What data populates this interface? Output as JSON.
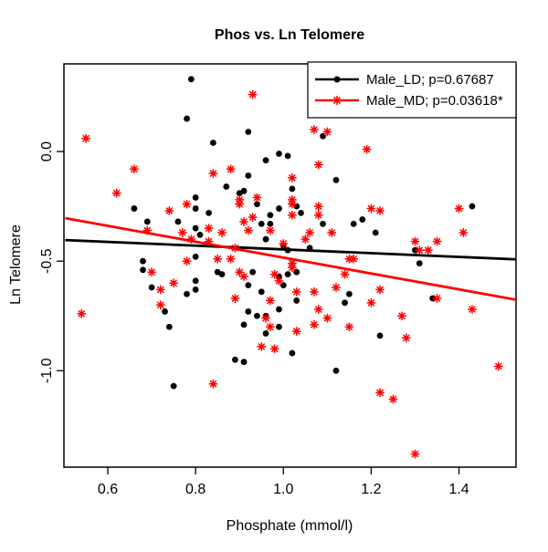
{
  "chart_data": {
    "type": "scatter",
    "title": "Phos vs. Ln Telomere",
    "xlabel": "Phosphate (mmol/l)",
    "ylabel": "Ln Telomere",
    "xlim": [
      0.5,
      1.53
    ],
    "ylim": [
      -1.44,
      0.4
    ],
    "x_ticks": [
      0.6,
      0.8,
      1.0,
      1.2,
      1.4
    ],
    "x_tick_labels": [
      "0.6",
      "0.8",
      "1.0",
      "1.2",
      "1.4"
    ],
    "y_ticks": [
      0.0,
      -0.5,
      -1.0
    ],
    "y_tick_labels": [
      "0.0",
      "-0.5",
      "-1.0"
    ],
    "grid": false,
    "legend_position": "top-right",
    "series": [
      {
        "name": "Male_LD; p=0.67687",
        "marker": "filled-circle",
        "color": "#000000",
        "points": [
          [
            0.79,
            0.33
          ],
          [
            0.78,
            0.15
          ],
          [
            0.84,
            0.04
          ],
          [
            0.8,
            -0.21
          ],
          [
            0.92,
            0.09
          ],
          [
            1.09,
            0.07
          ],
          [
            0.99,
            -0.01
          ],
          [
            1.01,
            -0.02
          ],
          [
            0.96,
            -0.04
          ],
          [
            0.92,
            -0.11
          ],
          [
            0.87,
            -0.16
          ],
          [
            0.91,
            -0.18
          ],
          [
            0.9,
            -0.19
          ],
          [
            1.02,
            -0.17
          ],
          [
            1.12,
            -0.13
          ],
          [
            0.66,
            -0.26
          ],
          [
            0.69,
            -0.32
          ],
          [
            0.76,
            -0.32
          ],
          [
            0.8,
            -0.26
          ],
          [
            0.83,
            -0.28
          ],
          [
            0.8,
            -0.35
          ],
          [
            0.81,
            -0.38
          ],
          [
            0.8,
            -0.48
          ],
          [
            0.68,
            -0.5
          ],
          [
            0.68,
            -0.54
          ],
          [
            0.7,
            -0.62
          ],
          [
            0.8,
            -0.59
          ],
          [
            0.8,
            -0.63
          ],
          [
            0.78,
            -0.65
          ],
          [
            0.73,
            -0.73
          ],
          [
            0.74,
            -0.8
          ],
          [
            0.94,
            -0.24
          ],
          [
            0.99,
            -0.26
          ],
          [
            1.03,
            -0.25
          ],
          [
            0.97,
            -0.29
          ],
          [
            0.95,
            -0.33
          ],
          [
            0.97,
            -0.33
          ],
          [
            1.04,
            -0.28
          ],
          [
            1.09,
            -0.33
          ],
          [
            1.16,
            -0.33
          ],
          [
            1.18,
            -0.31
          ],
          [
            0.96,
            -0.4
          ],
          [
            1.0,
            -0.43
          ],
          [
            1.01,
            -0.45
          ],
          [
            1.06,
            -0.44
          ],
          [
            0.85,
            -0.55
          ],
          [
            0.86,
            -0.56
          ],
          [
            0.93,
            -0.55
          ],
          [
            0.92,
            -0.61
          ],
          [
            0.99,
            -0.57
          ],
          [
            1.01,
            -0.56
          ],
          [
            1.03,
            -0.55
          ],
          [
            1.0,
            -0.61
          ],
          [
            0.95,
            -0.64
          ],
          [
            1.03,
            -0.68
          ],
          [
            1.15,
            -0.65
          ],
          [
            1.14,
            -0.69
          ],
          [
            0.92,
            -0.73
          ],
          [
            0.94,
            -0.75
          ],
          [
            0.96,
            -0.75
          ],
          [
            0.99,
            -0.72
          ],
          [
            0.91,
            -0.79
          ],
          [
            0.99,
            -0.8
          ],
          [
            0.96,
            -0.83
          ],
          [
            1.43,
            -0.25
          ],
          [
            1.21,
            -0.37
          ],
          [
            1.3,
            -0.45
          ],
          [
            1.31,
            -0.51
          ],
          [
            1.34,
            -0.67
          ],
          [
            1.22,
            -0.84
          ],
          [
            0.75,
            -1.07
          ],
          [
            1.02,
            -0.92
          ],
          [
            0.89,
            -0.95
          ],
          [
            0.91,
            -0.96
          ],
          [
            1.12,
            -1.0
          ]
        ],
        "trend": {
          "x1": 0.503,
          "y1": -0.404,
          "x2": 1.53,
          "y2": -0.492
        }
      },
      {
        "name": "Male_MD; p=0.03618*",
        "marker": "asterisk",
        "color": "#FF0000",
        "points": [
          [
            0.55,
            0.06
          ],
          [
            0.66,
            -0.08
          ],
          [
            0.84,
            -0.1
          ],
          [
            0.62,
            -0.19
          ],
          [
            0.93,
            0.26
          ],
          [
            1.07,
            0.1
          ],
          [
            1.1,
            0.09
          ],
          [
            1.08,
            -0.06
          ],
          [
            0.88,
            -0.08
          ],
          [
            1.02,
            -0.12
          ],
          [
            0.94,
            -0.21
          ],
          [
            0.9,
            -0.22
          ],
          [
            1.02,
            -0.22
          ],
          [
            1.19,
            0.01
          ],
          [
            0.74,
            -0.27
          ],
          [
            0.78,
            -0.24
          ],
          [
            0.69,
            -0.36
          ],
          [
            0.77,
            -0.37
          ],
          [
            0.79,
            -0.4
          ],
          [
            0.83,
            -0.35
          ],
          [
            0.83,
            -0.41
          ],
          [
            0.7,
            -0.55
          ],
          [
            0.78,
            -0.5
          ],
          [
            0.75,
            -0.6
          ],
          [
            0.72,
            -0.63
          ],
          [
            0.72,
            -0.7
          ],
          [
            0.54,
            -0.74
          ],
          [
            0.9,
            -0.24
          ],
          [
            1.02,
            -0.24
          ],
          [
            1.08,
            -0.25
          ],
          [
            0.91,
            -0.32
          ],
          [
            0.93,
            -0.3
          ],
          [
            1.02,
            -0.29
          ],
          [
            1.08,
            -0.29
          ],
          [
            0.86,
            -0.37
          ],
          [
            0.92,
            -0.36
          ],
          [
            0.97,
            -0.36
          ],
          [
            1.06,
            -0.37
          ],
          [
            1.11,
            -0.37
          ],
          [
            1.05,
            -0.4
          ],
          [
            1.0,
            -0.42
          ],
          [
            0.89,
            -0.44
          ],
          [
            0.85,
            -0.49
          ],
          [
            0.88,
            -0.49
          ],
          [
            0.9,
            -0.55
          ],
          [
            0.91,
            -0.57
          ],
          [
            0.98,
            -0.56
          ],
          [
            0.99,
            -0.59
          ],
          [
            1.02,
            -0.51
          ],
          [
            1.02,
            -0.53
          ],
          [
            1.15,
            -0.49
          ],
          [
            1.16,
            -0.49
          ],
          [
            1.14,
            -0.56
          ],
          [
            1.12,
            -0.62
          ],
          [
            1.07,
            -0.64
          ],
          [
            1.03,
            -0.64
          ],
          [
            0.97,
            -0.68
          ],
          [
            0.89,
            -0.67
          ],
          [
            1.08,
            -0.72
          ],
          [
            1.1,
            -0.76
          ],
          [
            1.07,
            -0.79
          ],
          [
            0.96,
            -0.76
          ],
          [
            0.97,
            -0.8
          ],
          [
            1.03,
            -0.82
          ],
          [
            1.15,
            -0.8
          ],
          [
            1.2,
            -0.26
          ],
          [
            1.22,
            -0.27
          ],
          [
            1.4,
            -0.26
          ],
          [
            1.41,
            -0.37
          ],
          [
            1.3,
            -0.41
          ],
          [
            1.31,
            -0.45
          ],
          [
            1.33,
            -0.45
          ],
          [
            1.35,
            -0.41
          ],
          [
            1.22,
            -0.63
          ],
          [
            1.2,
            -0.69
          ],
          [
            1.35,
            -0.67
          ],
          [
            1.43,
            -0.72
          ],
          [
            1.27,
            -0.75
          ],
          [
            1.28,
            -0.85
          ],
          [
            0.84,
            -1.06
          ],
          [
            0.95,
            -0.89
          ],
          [
            0.98,
            -0.9
          ],
          [
            1.49,
            -0.98
          ],
          [
            1.22,
            -1.1
          ],
          [
            1.25,
            -1.13
          ],
          [
            1.3,
            -1.38
          ]
        ],
        "trend": {
          "x1": 0.503,
          "y1": -0.304,
          "x2": 1.53,
          "y2": -0.676
        }
      }
    ]
  },
  "colors": {
    "background": "#FFFFFF",
    "axis": "#000000",
    "male_ld": "#000000",
    "male_md": "#FF0000"
  }
}
